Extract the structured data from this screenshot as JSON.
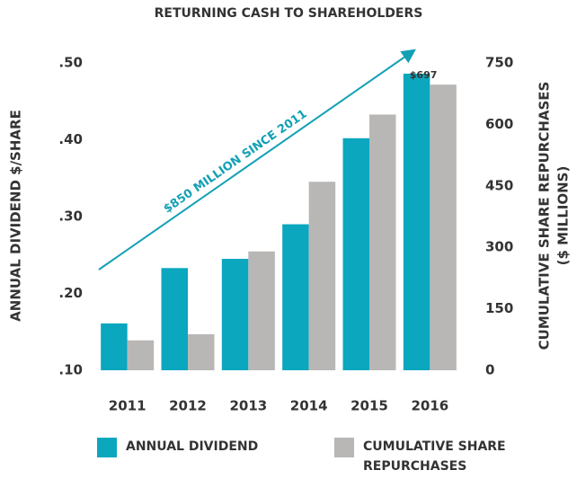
{
  "chart_data": {
    "type": "bar",
    "title": "RETURNING CASH TO SHAREHOLDERS",
    "annotation": "$850 MILLION SINCE 2011",
    "ylabel": "ANNUAL DIVIDEND $/SHARE",
    "y2label": [
      "CUMULATIVE SHARE REPURCHASES",
      "($ MILLIONS)"
    ],
    "categories": [
      "2011",
      "2012",
      "2013",
      "2014",
      "2015",
      "2016"
    ],
    "series": [
      {
        "name": "ANNUAL DIVIDEND",
        "color": "#0aa7bf",
        "values": [
          0.161,
          0.233,
          0.245,
          0.29,
          0.402,
          0.486
        ]
      },
      {
        "name": "CUMULATIVE SHARE REPURCHASES",
        "color": "#b8b7b5",
        "axis": "y2",
        "values": [
          73,
          88,
          290,
          460,
          624,
          697
        ],
        "value_labels": [
          null,
          null,
          null,
          null,
          null,
          "$697"
        ]
      }
    ],
    "ylim": [
      0.1,
      0.5
    ],
    "yticks": [
      {
        "value": 0.1,
        "label": ".10"
      },
      {
        "value": 0.2,
        "label": ".20"
      },
      {
        "value": 0.3,
        "label": ".30"
      },
      {
        "value": 0.4,
        "label": ".40"
      },
      {
        "value": 0.5,
        "label": ".50"
      }
    ],
    "y2lim": [
      0,
      750
    ],
    "y2ticks": [
      0,
      150,
      300,
      450,
      600,
      750
    ]
  }
}
